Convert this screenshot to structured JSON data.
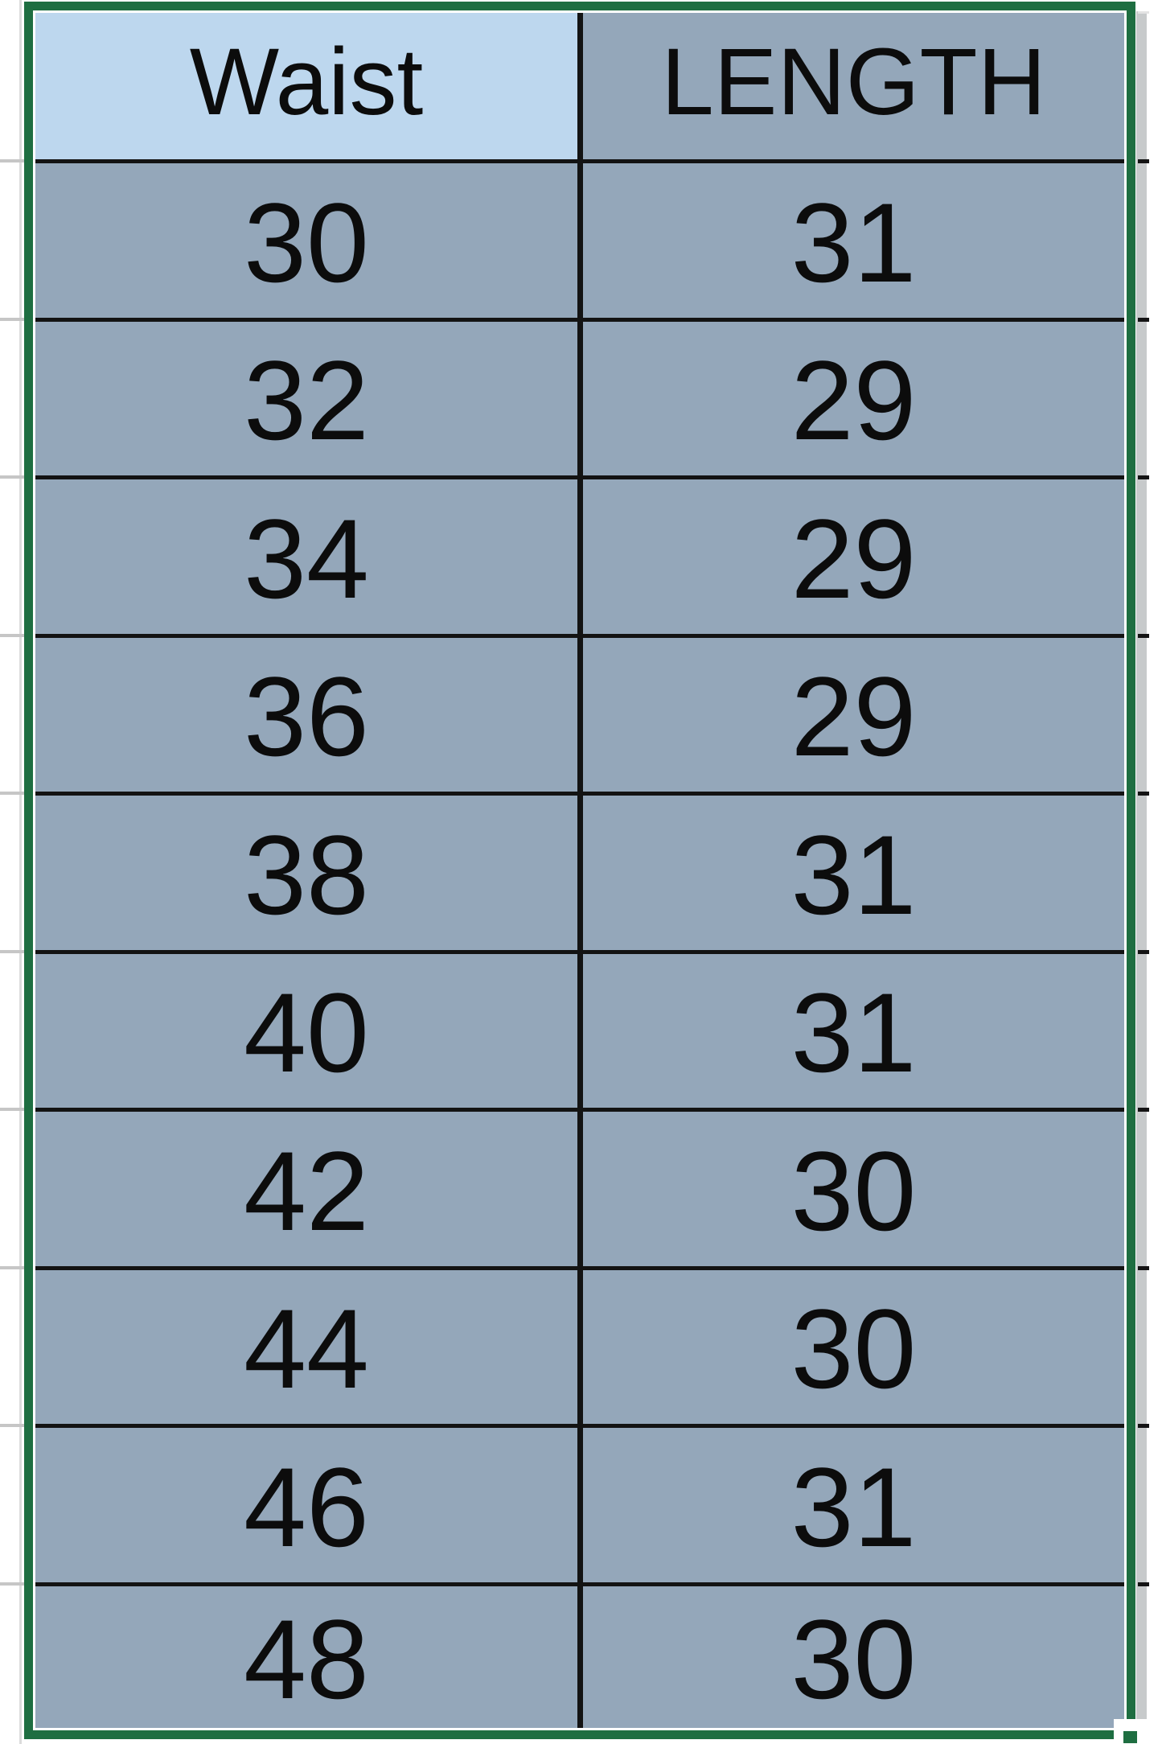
{
  "sheet": {
    "header": {
      "col1": "Waist",
      "col2": "LENGTH"
    },
    "rows": [
      {
        "waist": "30",
        "length": "31"
      },
      {
        "waist": "32",
        "length": "29"
      },
      {
        "waist": "34",
        "length": "29"
      },
      {
        "waist": "36",
        "length": "29"
      },
      {
        "waist": "38",
        "length": "31"
      },
      {
        "waist": "40",
        "length": "31"
      },
      {
        "waist": "42",
        "length": "30"
      },
      {
        "waist": "44",
        "length": "30"
      },
      {
        "waist": "46",
        "length": "31"
      },
      {
        "waist": "48",
        "length": "30"
      }
    ],
    "colors": {
      "selection_green": "#1e6e41",
      "active_cell_fill": "#bdd7ee",
      "selected_cell_fill": "#94a7ba",
      "neighbor_column_gray": "#c7cacb"
    }
  }
}
